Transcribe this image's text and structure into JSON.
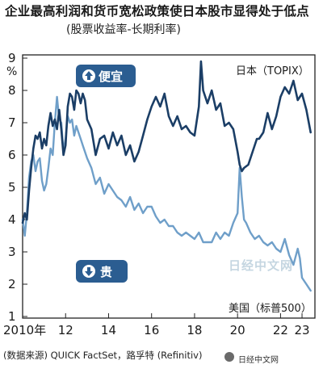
{
  "title": "企业最高利润和货币宽松政策使日本股市显得处于低点",
  "subtitle": "(股票收益率-长期利率)",
  "source": "(数据来源) QUICK FactSet，路孚特 (Refinitiv)",
  "watermark_mid": "日经中文网",
  "watermark_corner": "日经中文网",
  "colors": {
    "japan": "#1b3e66",
    "us": "#6f9fc9",
    "badge": "#2b5d91",
    "frame": "#222222"
  },
  "icons": {
    "up": "up-arrow-icon",
    "down": "down-arrow-icon"
  },
  "chart_data": {
    "type": "line",
    "title": "企业最高利润和货币宽松政策使日本股市显得处于低点",
    "subtitle": "(股票收益率-长期利率)",
    "ylabel": "%",
    "ylim": [
      1,
      9
    ],
    "xlim": [
      2010.0,
      2023.6
    ],
    "y_ticks": [
      "1",
      "2",
      "3",
      "4",
      "5",
      "6",
      "7",
      "8",
      "9"
    ],
    "y_tick_values": [
      1,
      2,
      3,
      4,
      5,
      6,
      7,
      8,
      9
    ],
    "x_ticks": [
      "2010年",
      "12",
      "14",
      "16",
      "18",
      "20",
      "22",
      "23"
    ],
    "x_tick_values": [
      2010,
      2012,
      2014,
      2016,
      2018,
      2020,
      2022,
      2023
    ],
    "annotations": {
      "up_badge": "便宜",
      "down_badge": "贵"
    },
    "grid": false,
    "series": [
      {
        "name": "日本（TOPIX）",
        "x": [
          2010.0,
          2010.1,
          2010.2,
          2010.3,
          2010.4,
          2010.5,
          2010.6,
          2010.7,
          2010.8,
          2010.9,
          2011.0,
          2011.1,
          2011.2,
          2011.3,
          2011.4,
          2011.5,
          2011.6,
          2011.7,
          2011.8,
          2011.9,
          2012.0,
          2012.1,
          2012.2,
          2012.3,
          2012.4,
          2012.5,
          2012.6,
          2012.7,
          2012.8,
          2012.9,
          2013.0,
          2013.2,
          2013.4,
          2013.6,
          2013.8,
          2014.0,
          2014.2,
          2014.4,
          2014.6,
          2014.8,
          2015.0,
          2015.2,
          2015.4,
          2015.6,
          2015.8,
          2016.0,
          2016.2,
          2016.4,
          2016.6,
          2016.8,
          2017.0,
          2017.2,
          2017.4,
          2017.6,
          2017.8,
          2018.0,
          2018.2,
          2018.3,
          2018.4,
          2018.6,
          2018.8,
          2019.0,
          2019.2,
          2019.4,
          2019.6,
          2019.8,
          2020.0,
          2020.1,
          2020.2,
          2020.3,
          2020.5,
          2020.7,
          2020.9,
          2021.0,
          2021.2,
          2021.4,
          2021.6,
          2021.8,
          2022.0,
          2022.2,
          2022.4,
          2022.6,
          2022.8,
          2023.0,
          2023.2,
          2023.4
        ],
        "values": [
          3.9,
          4.2,
          4.0,
          4.9,
          5.6,
          6.2,
          6.6,
          6.5,
          6.7,
          6.2,
          6.5,
          6.3,
          6.9,
          7.3,
          6.9,
          7.1,
          6.8,
          7.4,
          6.8,
          6.0,
          6.3,
          7.5,
          7.9,
          7.8,
          7.4,
          8.0,
          7.9,
          7.6,
          7.9,
          7.7,
          7.1,
          6.8,
          6.0,
          6.5,
          6.6,
          6.2,
          6.7,
          6.3,
          6.6,
          6.0,
          6.3,
          5.8,
          6.1,
          6.6,
          7.1,
          7.5,
          7.8,
          7.5,
          7.9,
          7.2,
          6.9,
          7.2,
          6.8,
          6.9,
          6.7,
          6.6,
          7.5,
          8.9,
          8.0,
          7.6,
          8.0,
          7.4,
          7.6,
          6.9,
          7.0,
          6.8,
          6.1,
          5.7,
          5.5,
          5.6,
          5.7,
          6.1,
          6.5,
          6.5,
          6.7,
          7.3,
          6.8,
          7.2,
          7.8,
          8.1,
          7.9,
          8.3,
          7.7,
          7.9,
          7.4,
          6.7
        ]
      },
      {
        "name": "美国（标普500）",
        "x": [
          2010.0,
          2010.1,
          2010.2,
          2010.3,
          2010.4,
          2010.5,
          2010.6,
          2010.7,
          2010.8,
          2010.9,
          2011.0,
          2011.1,
          2011.2,
          2011.3,
          2011.4,
          2011.5,
          2011.6,
          2011.7,
          2011.8,
          2011.9,
          2012.0,
          2012.1,
          2012.2,
          2012.3,
          2012.4,
          2012.5,
          2012.6,
          2012.7,
          2012.8,
          2012.9,
          2013.0,
          2013.2,
          2013.4,
          2013.6,
          2013.8,
          2014.0,
          2014.2,
          2014.4,
          2014.6,
          2014.8,
          2015.0,
          2015.2,
          2015.4,
          2015.6,
          2015.8,
          2016.0,
          2016.2,
          2016.4,
          2016.6,
          2016.8,
          2017.0,
          2017.2,
          2017.4,
          2017.6,
          2017.8,
          2018.0,
          2018.2,
          2018.4,
          2018.6,
          2018.8,
          2019.0,
          2019.2,
          2019.4,
          2019.6,
          2019.8,
          2020.0,
          2020.1,
          2020.2,
          2020.3,
          2020.4,
          2020.6,
          2020.8,
          2021.0,
          2021.2,
          2021.4,
          2021.6,
          2021.8,
          2022.0,
          2022.2,
          2022.4,
          2022.6,
          2022.8,
          2022.9,
          2023.0,
          2023.2,
          2023.4
        ],
        "values": [
          4.0,
          3.5,
          4.2,
          5.3,
          5.8,
          6.0,
          5.5,
          5.8,
          5.9,
          5.2,
          4.9,
          5.1,
          5.6,
          6.2,
          6.0,
          7.0,
          7.8,
          7.1,
          7.0,
          6.1,
          6.5,
          7.2,
          7.0,
          7.1,
          6.6,
          6.9,
          6.7,
          6.5,
          6.3,
          6.1,
          5.9,
          5.6,
          5.1,
          5.3,
          4.8,
          5.1,
          4.9,
          4.7,
          4.6,
          4.4,
          4.7,
          4.3,
          4.5,
          4.2,
          4.4,
          4.4,
          4.1,
          3.9,
          4.0,
          3.8,
          3.8,
          3.6,
          3.5,
          3.6,
          3.5,
          3.4,
          3.6,
          3.3,
          3.3,
          3.3,
          3.6,
          3.4,
          3.6,
          3.5,
          3.9,
          4.2,
          5.6,
          4.7,
          4.0,
          3.9,
          3.6,
          3.4,
          3.5,
          3.3,
          3.2,
          3.3,
          3.1,
          3.0,
          3.4,
          2.9,
          2.6,
          3.1,
          2.8,
          2.2,
          2.0,
          1.8
        ]
      }
    ]
  }
}
